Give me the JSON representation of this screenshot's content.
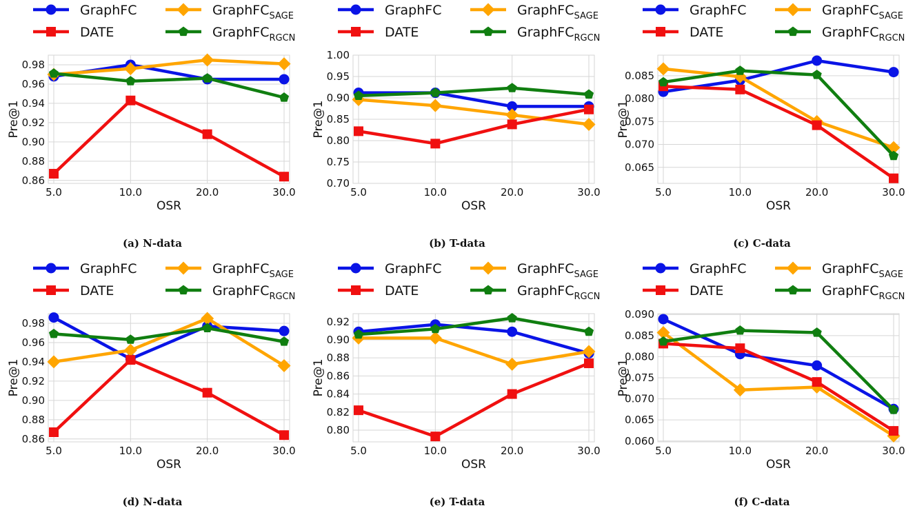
{
  "colors": {
    "GraphFC": "#0a14e6",
    "DATE": "#f01010",
    "GraphFC_SAGE": "#ffa500",
    "GraphFC_RGCN": "#107e10",
    "grid": "#d6d6d6"
  },
  "legend": {
    "items": [
      {
        "key": "GraphFC",
        "base": "GraphFC",
        "sub": "",
        "marker": "circle"
      },
      {
        "key": "GraphFC_SAGE",
        "base": "GraphFC",
        "sub": "SAGE",
        "marker": "diamond"
      },
      {
        "key": "DATE",
        "base": "DATE",
        "sub": "",
        "marker": "square"
      },
      {
        "key": "GraphFC_RGCN",
        "base": "GraphFC",
        "sub": "RGCN",
        "marker": "pentagon"
      }
    ]
  },
  "chart_data": [
    {
      "caption": "(a) N-data",
      "type": "line",
      "xlabel": "OSR",
      "ylabel": "Pre@1",
      "categories": [
        "5.0",
        "10.0",
        "20.0",
        "30.0"
      ],
      "ylim": [
        0.857,
        0.99
      ],
      "yticks": [
        "0.86",
        "0.88",
        "0.90",
        "0.92",
        "0.94",
        "0.96",
        "0.98"
      ],
      "series": [
        {
          "key": "GraphFC",
          "values": [
            0.968,
            0.98,
            0.965,
            0.965
          ]
        },
        {
          "key": "GraphFC_SAGE",
          "values": [
            0.97,
            0.976,
            0.985,
            0.981
          ]
        },
        {
          "key": "DATE",
          "values": [
            0.867,
            0.943,
            0.908,
            0.864
          ]
        },
        {
          "key": "GraphFC_RGCN",
          "values": [
            0.971,
            0.963,
            0.966,
            0.946
          ]
        }
      ]
    },
    {
      "caption": "(b) T-data",
      "type": "line",
      "xlabel": "OSR",
      "ylabel": "Pre@1",
      "categories": [
        "5.0",
        "10.0",
        "20.0",
        "30.0"
      ],
      "ylim": [
        0.7,
        1.0
      ],
      "yticks": [
        "0.70",
        "0.75",
        "0.80",
        "0.85",
        "0.90",
        "0.95",
        "1.00"
      ],
      "series": [
        {
          "key": "GraphFC",
          "values": [
            0.912,
            0.912,
            0.88,
            0.88
          ]
        },
        {
          "key": "GraphFC_SAGE",
          "values": [
            0.896,
            0.882,
            0.86,
            0.838
          ]
        },
        {
          "key": "DATE",
          "values": [
            0.822,
            0.793,
            0.838,
            0.873
          ]
        },
        {
          "key": "GraphFC_RGCN",
          "values": [
            0.905,
            0.912,
            0.923,
            0.908
          ]
        }
      ]
    },
    {
      "caption": "(c) C-data",
      "type": "line",
      "xlabel": "OSR",
      "ylabel": "Pre@1",
      "categories": [
        "5.0",
        "10.0",
        "20.0",
        "30.0"
      ],
      "ylim": [
        0.0615,
        0.0895
      ],
      "yticks": [
        "0.065",
        "0.070",
        "0.075",
        "0.080",
        "0.085"
      ],
      "series": [
        {
          "key": "GraphFC",
          "values": [
            0.0815,
            0.084,
            0.0883,
            0.0858
          ]
        },
        {
          "key": "GraphFC_SAGE",
          "values": [
            0.0865,
            0.0848,
            0.075,
            0.0693
          ]
        },
        {
          "key": "DATE",
          "values": [
            0.0827,
            0.082,
            0.0742,
            0.0626
          ]
        },
        {
          "key": "GraphFC_RGCN",
          "values": [
            0.0836,
            0.0861,
            0.0852,
            0.0675
          ]
        }
      ]
    },
    {
      "caption": "(d) N-data",
      "type": "line",
      "xlabel": "OSR",
      "ylabel": "Pre@1",
      "categories": [
        "5.0",
        "10.0",
        "20.0",
        "30.0"
      ],
      "ylim": [
        0.857,
        0.99
      ],
      "yticks": [
        "0.86",
        "0.88",
        "0.90",
        "0.92",
        "0.94",
        "0.96",
        "0.98"
      ],
      "series": [
        {
          "key": "GraphFC",
          "values": [
            0.986,
            0.943,
            0.977,
            0.972
          ]
        },
        {
          "key": "GraphFC_SAGE",
          "values": [
            0.94,
            0.952,
            0.985,
            0.936
          ]
        },
        {
          "key": "DATE",
          "values": [
            0.867,
            0.942,
            0.908,
            0.864
          ]
        },
        {
          "key": "GraphFC_RGCN",
          "values": [
            0.969,
            0.963,
            0.975,
            0.961
          ]
        }
      ]
    },
    {
      "caption": "(e) T-data",
      "type": "line",
      "xlabel": "OSR",
      "ylabel": "Pre@1",
      "categories": [
        "5.0",
        "10.0",
        "20.0",
        "30.0"
      ],
      "ylim": [
        0.787,
        0.929
      ],
      "yticks": [
        "0.80",
        "0.82",
        "0.84",
        "0.86",
        "0.88",
        "0.90",
        "0.92"
      ],
      "series": [
        {
          "key": "GraphFC",
          "values": [
            0.909,
            0.917,
            0.909,
            0.885
          ]
        },
        {
          "key": "GraphFC_SAGE",
          "values": [
            0.902,
            0.902,
            0.873,
            0.887
          ]
        },
        {
          "key": "DATE",
          "values": [
            0.822,
            0.793,
            0.84,
            0.874
          ]
        },
        {
          "key": "GraphFC_RGCN",
          "values": [
            0.906,
            0.912,
            0.924,
            0.909
          ]
        }
      ]
    },
    {
      "caption": "(f) C-data",
      "type": "line",
      "xlabel": "OSR",
      "ylabel": "Pre@1",
      "categories": [
        "5.0",
        "10.0",
        "20.0",
        "30.0"
      ],
      "ylim": [
        0.0598,
        0.0902
      ],
      "yticks": [
        "0.060",
        "0.065",
        "0.070",
        "0.075",
        "0.080",
        "0.085",
        "0.090"
      ],
      "series": [
        {
          "key": "GraphFC",
          "values": [
            0.0889,
            0.0806,
            0.0779,
            0.0676
          ]
        },
        {
          "key": "GraphFC_SAGE",
          "values": [
            0.0857,
            0.0721,
            0.0728,
            0.0612
          ]
        },
        {
          "key": "DATE",
          "values": [
            0.0831,
            0.082,
            0.074,
            0.0624
          ]
        },
        {
          "key": "GraphFC_RGCN",
          "values": [
            0.0836,
            0.0862,
            0.0857,
            0.0674
          ]
        }
      ]
    }
  ]
}
